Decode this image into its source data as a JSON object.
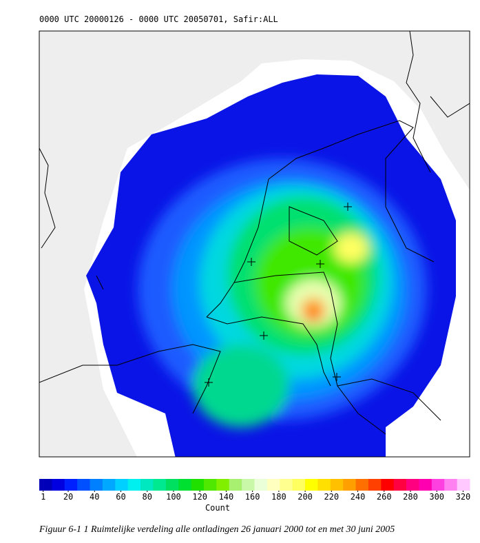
{
  "header": "0000 UTC 20000126 - 0000 UTC 20050701, Safir:ALL",
  "colorbar": {
    "label": "Count",
    "lim": [
      -2,
      325
    ],
    "ticks": [
      1,
      20,
      40,
      60,
      80,
      100,
      120,
      140,
      160,
      180,
      200,
      220,
      240,
      260,
      280,
      300,
      320
    ],
    "colors": [
      "#0000b8",
      "#0000e0",
      "#0020ff",
      "#0050ff",
      "#0080ff",
      "#00a8ff",
      "#00d0ff",
      "#00f0f0",
      "#00e8c0",
      "#00e890",
      "#00e060",
      "#00e030",
      "#20e000",
      "#50e800",
      "#80f000",
      "#a8f070",
      "#c8f8a8",
      "#eaffd8",
      "#ffffc0",
      "#ffff90",
      "#ffff60",
      "#ffff00",
      "#ffe000",
      "#ffc000",
      "#ffa000",
      "#ff7000",
      "#ff4000",
      "#ff0000",
      "#ff0040",
      "#ff0080",
      "#ff00b0",
      "#ff40e0",
      "#ff80f0",
      "#ffc8ff"
    ]
  },
  "caption": "Figuur 6-1 1  Ruimtelijke verdeling alle ontladingen 26 januari 2000 tot en met 30 juni 2005"
}
